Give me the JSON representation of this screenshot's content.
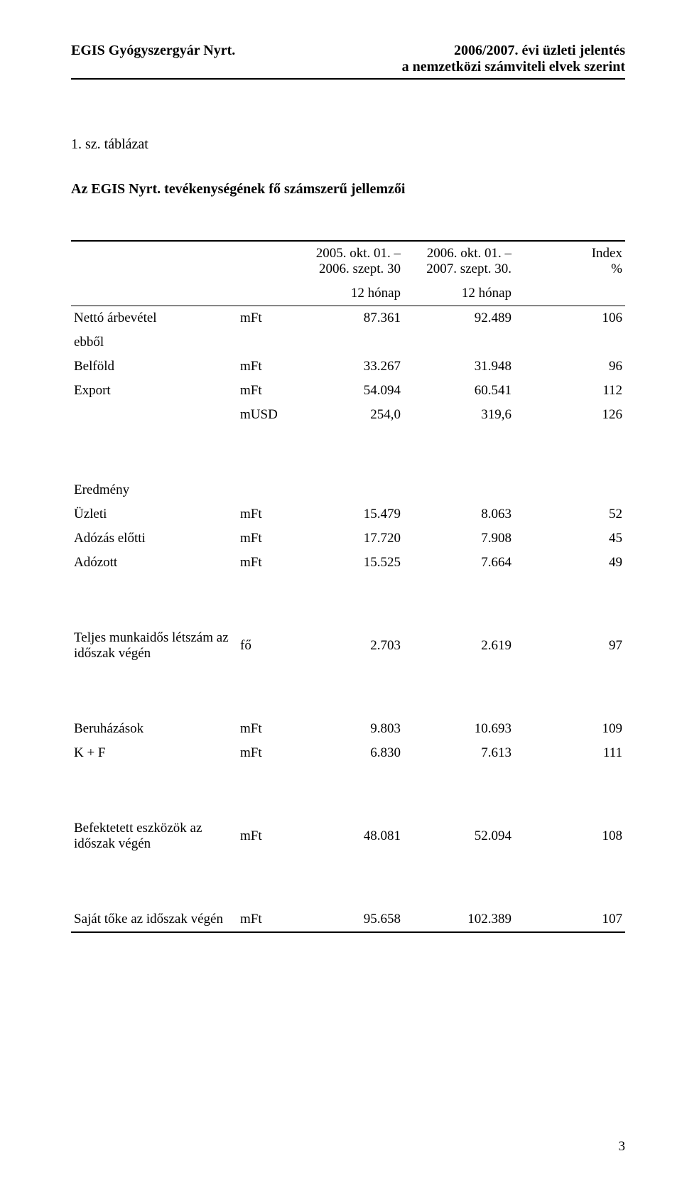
{
  "header": {
    "left": "EGIS Gyógyszergyár Nyrt.",
    "right_line1": "2006/2007. évi üzleti jelentés",
    "right_line2": "a nemzetközi számviteli elvek szerint"
  },
  "toc_label": "1. sz. táblázat",
  "title": "Az EGIS Nyrt. tevékenységének fő számszerű jellemzői",
  "columns": {
    "period1_line1": "2005. okt. 01. –",
    "period1_line2": "2006. szept. 30",
    "period2_line1": "2006. okt. 01. –",
    "period2_line2": "2007. szept. 30.",
    "index_line1": "Index",
    "index_line2": "%",
    "sub_period": "12 hónap"
  },
  "sections": [
    {
      "rows": [
        {
          "label": "Nettó árbevétel",
          "indent": 0,
          "unit": "mFt",
          "v1": "87.361",
          "v2": "92.489",
          "idx": "106"
        },
        {
          "label": "ebből",
          "indent": 1,
          "unit": "",
          "v1": "",
          "v2": "",
          "idx": ""
        },
        {
          "label": "Belföld",
          "indent": 2,
          "unit": "mFt",
          "v1": "33.267",
          "v2": "31.948",
          "idx": "96"
        },
        {
          "label": "Export",
          "indent": 2,
          "unit": "mFt",
          "v1": "54.094",
          "v2": "60.541",
          "idx": "112"
        },
        {
          "label": "",
          "indent": 3,
          "unit": "mUSD",
          "v1": "254,0",
          "v2": "319,6",
          "idx": "126"
        }
      ]
    },
    {
      "rows": [
        {
          "label": "Eredmény",
          "indent": 0,
          "unit": "",
          "v1": "",
          "v2": "",
          "idx": ""
        },
        {
          "label": "Üzleti",
          "indent": 2,
          "unit": "mFt",
          "v1": "15.479",
          "v2": "8.063",
          "idx": "52"
        },
        {
          "label": "Adózás előtti",
          "indent": 2,
          "unit": "mFt",
          "v1": "17.720",
          "v2": "7.908",
          "idx": "45"
        },
        {
          "label": "Adózott",
          "indent": 2,
          "unit": "mFt",
          "v1": "15.525",
          "v2": "7.664",
          "idx": "49"
        }
      ]
    },
    {
      "rows": [
        {
          "label": "Teljes munkaidős létszám az időszak végén",
          "indent": 0,
          "unit": "fő",
          "v1": "2.703",
          "v2": "2.619",
          "idx": "97"
        }
      ]
    },
    {
      "rows": [
        {
          "label": "Beruházások",
          "indent": 0,
          "unit": "mFt",
          "v1": "9.803",
          "v2": "10.693",
          "idx": "109"
        },
        {
          "label": "K + F",
          "indent": 0,
          "unit": "mFt",
          "v1": "6.830",
          "v2": "7.613",
          "idx": "111"
        }
      ]
    },
    {
      "rows": [
        {
          "label": "Befektetett eszközök az időszak végén",
          "indent": 0,
          "unit": "mFt",
          "v1": "48.081",
          "v2": "52.094",
          "idx": "108"
        }
      ]
    },
    {
      "rows": [
        {
          "label": "Saját tőke az időszak végén",
          "indent": 0,
          "unit": "mFt",
          "v1": "95.658",
          "v2": "102.389",
          "idx": "107"
        }
      ]
    }
  ],
  "page_number": "3"
}
